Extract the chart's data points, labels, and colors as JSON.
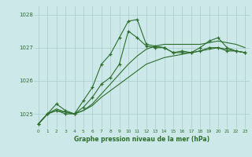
{
  "x": [
    0,
    1,
    2,
    3,
    4,
    5,
    6,
    7,
    8,
    9,
    10,
    11,
    12,
    13,
    14,
    15,
    16,
    17,
    18,
    19,
    20,
    21,
    22,
    23
  ],
  "series1": [
    1024.7,
    1025.0,
    1025.3,
    1025.1,
    1025.0,
    1025.4,
    1025.8,
    1026.5,
    1026.8,
    1027.3,
    1027.8,
    1027.85,
    1027.1,
    1027.05,
    1027.0,
    1026.85,
    1026.9,
    1026.85,
    1027.0,
    1027.2,
    1027.3,
    1027.0,
    1026.9,
    1026.85
  ],
  "series2": [
    1024.7,
    1025.0,
    1025.1,
    1025.0,
    1025.0,
    1025.2,
    1025.5,
    1025.9,
    1026.1,
    1026.5,
    1027.5,
    1027.3,
    1027.05,
    1027.0,
    1027.0,
    1026.85,
    1026.85,
    1026.85,
    1026.9,
    1027.0,
    1027.0,
    1026.9,
    1026.9,
    1026.85
  ],
  "series3": [
    1024.7,
    1025.0,
    1025.15,
    1025.05,
    1025.0,
    1025.1,
    1025.3,
    1025.6,
    1025.9,
    1026.2,
    1026.5,
    1026.75,
    1026.95,
    1027.05,
    1027.1,
    1027.1,
    1027.1,
    1027.1,
    1027.1,
    1027.15,
    1027.2,
    1027.15,
    1027.1,
    1027.0
  ],
  "series4": [
    1024.7,
    1025.0,
    1025.1,
    1025.05,
    1025.0,
    1025.1,
    1025.25,
    1025.5,
    1025.7,
    1025.9,
    1026.1,
    1026.3,
    1026.5,
    1026.6,
    1026.7,
    1026.75,
    1026.8,
    1026.85,
    1026.9,
    1026.95,
    1027.0,
    1026.95,
    1026.9,
    1026.85
  ],
  "ylim": [
    1024.55,
    1028.25
  ],
  "yticks": [
    1025,
    1026,
    1027,
    1028
  ],
  "xticks": [
    0,
    1,
    2,
    3,
    4,
    5,
    6,
    7,
    8,
    9,
    10,
    11,
    12,
    13,
    14,
    15,
    16,
    17,
    18,
    19,
    20,
    21,
    22,
    23
  ],
  "xlabel": "Graphe pression niveau de la mer (hPa)",
  "line_color": "#2d6e2d",
  "bg_color": "#cce8e8",
  "grid_color": "#aacccc",
  "marker": "+"
}
